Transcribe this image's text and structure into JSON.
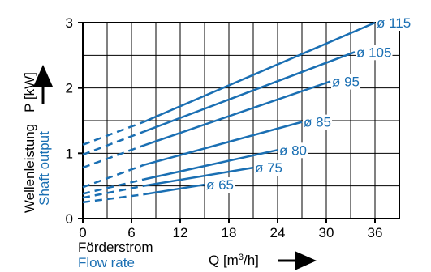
{
  "colors": {
    "accent": "#1a6fb3",
    "grid": "#000000",
    "axis": "#000000"
  },
  "y_axis": {
    "label_de": "Wellenleistung",
    "label_en": "Shaft output",
    "quantity": "P [kW]"
  },
  "x_axis": {
    "label_de": "Förderstrom",
    "label_en": "Flow rate",
    "quantity_prefix": "Q [m",
    "quantity_sup": "3",
    "quantity_suffix": "/h]"
  },
  "chart_data": {
    "type": "line",
    "title": "",
    "xlabel": "Q [m³/h]",
    "ylabel": "P [kW]",
    "xlim": [
      0,
      39
    ],
    "ylim": [
      0,
      3
    ],
    "x_ticks": [
      "0",
      "6",
      "12",
      "18",
      "24",
      "30",
      "36"
    ],
    "y_ticks": [
      "0",
      "1",
      "2",
      "3"
    ],
    "grid": true,
    "note": "dashed segments extrapolate each curve back to Q = 0",
    "series": [
      {
        "name": "ø 65",
        "dashed": {
          "x": [
            0,
            7.5
          ],
          "y": [
            0.25,
            0.37
          ]
        },
        "solid": {
          "x": [
            7.5,
            15
          ],
          "y": [
            0.37,
            0.52
          ]
        }
      },
      {
        "name": "ø 75",
        "dashed": {
          "x": [
            0,
            7.5
          ],
          "y": [
            0.32,
            0.5
          ]
        },
        "solid": {
          "x": [
            7.5,
            21
          ],
          "y": [
            0.5,
            0.78
          ]
        }
      },
      {
        "name": "ø 80",
        "dashed": {
          "x": [
            0,
            7.5
          ],
          "y": [
            0.38,
            0.6
          ]
        },
        "solid": {
          "x": [
            7.5,
            24
          ],
          "y": [
            0.6,
            1.05
          ]
        }
      },
      {
        "name": "ø 85",
        "dashed": {
          "x": [
            0,
            7.5
          ],
          "y": [
            0.48,
            0.82
          ]
        },
        "solid": {
          "x": [
            7.5,
            27
          ],
          "y": [
            0.82,
            1.48
          ]
        }
      },
      {
        "name": "ø 95",
        "dashed": {
          "x": [
            0,
            7.5
          ],
          "y": [
            0.78,
            1.12
          ]
        },
        "solid": {
          "x": [
            7.5,
            30.5
          ],
          "y": [
            1.12,
            2.1
          ]
        }
      },
      {
        "name": "ø 105",
        "dashed": {
          "x": [
            0,
            7.5
          ],
          "y": [
            0.98,
            1.33
          ]
        },
        "solid": {
          "x": [
            7.5,
            33.5
          ],
          "y": [
            1.33,
            2.55
          ]
        }
      },
      {
        "name": "ø 115",
        "dashed": {
          "x": [
            0,
            7.5
          ],
          "y": [
            1.13,
            1.48
          ]
        },
        "solid": {
          "x": [
            7.5,
            36
          ],
          "y": [
            1.48,
            3.0
          ]
        }
      }
    ]
  }
}
